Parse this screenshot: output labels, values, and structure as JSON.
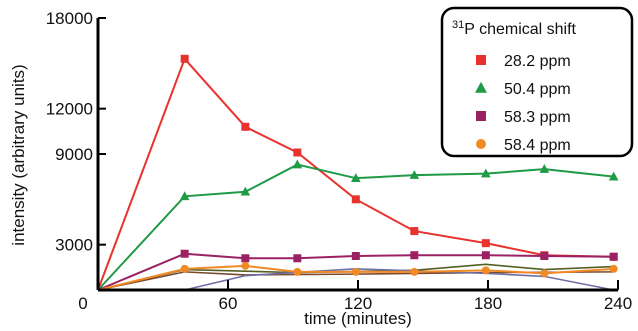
{
  "chart_data": {
    "type": "line",
    "xlabel": "time (minutes)",
    "ylabel": "intensity (arbitrary units)",
    "xlim": [
      0,
      240
    ],
    "ylim": [
      0,
      18000
    ],
    "xticks": [
      0,
      60,
      120,
      180,
      240
    ],
    "yticks": [
      3000,
      9000,
      12000,
      18000
    ],
    "x_origin_label": "0",
    "legend": {
      "title_sup": "31",
      "title": "P chemical shift",
      "placement": "top-right"
    },
    "x": [
      0,
      40,
      68,
      92,
      119,
      146,
      179,
      206,
      238
    ],
    "series": [
      {
        "name": "28.2 ppm",
        "color": "#e8322d",
        "marker": "square",
        "values": [
          0,
          15300,
          10800,
          9100,
          6000,
          3900,
          3100,
          2300,
          2200
        ]
      },
      {
        "name": "50.4 ppm",
        "color": "#1f9a45",
        "marker": "triangle",
        "values": [
          0,
          6200,
          6500,
          8300,
          7400,
          7600,
          7700,
          8000,
          7500
        ]
      },
      {
        "name": "58.3 ppm",
        "color": "#9b2165",
        "marker": "square",
        "values": [
          0,
          2400,
          2100,
          2100,
          2250,
          2300,
          2300,
          2250,
          2200
        ]
      },
      {
        "name": "58.4 ppm",
        "color": "#f08a24",
        "marker": "circle",
        "values": [
          0,
          1400,
          1600,
          1200,
          1200,
          1200,
          1300,
          1100,
          1400
        ]
      }
    ],
    "background_lines": [
      {
        "color": "#555f22",
        "x": [
          0,
          40,
          92,
          146,
          179,
          206,
          238
        ],
        "values": [
          0,
          1350,
          1150,
          1300,
          1700,
          1350,
          1550
        ]
      },
      {
        "color": "#7a4a2f",
        "x": [
          0,
          40,
          68,
          119,
          179,
          238
        ],
        "values": [
          0,
          1200,
          1000,
          1050,
          1150,
          1200
        ]
      },
      {
        "color": "#6f6fa6",
        "x": [
          40,
          68,
          119,
          179,
          206,
          238
        ],
        "values": [
          0,
          950,
          1400,
          1100,
          900,
          0
        ]
      }
    ]
  }
}
